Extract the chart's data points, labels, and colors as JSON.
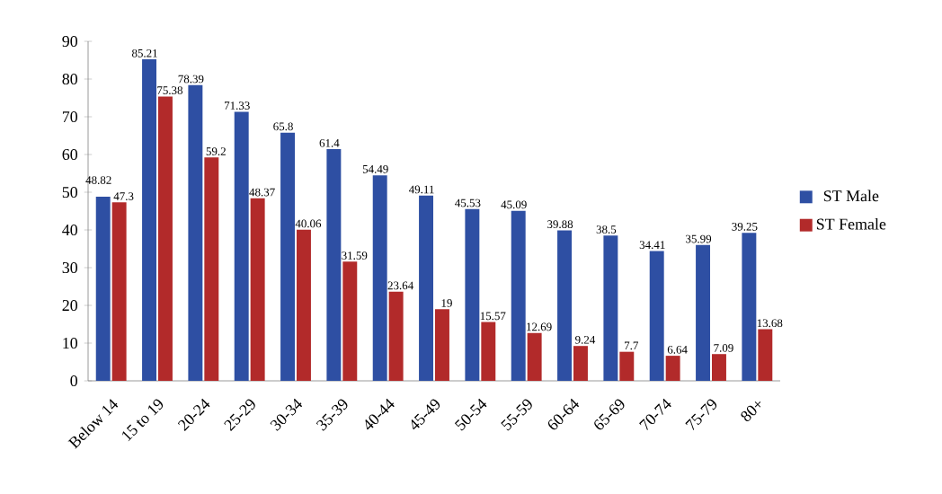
{
  "chart_data": {
    "type": "bar",
    "categories": [
      "Below 14",
      "15 to 19",
      "20-24",
      "25-29",
      "30-34",
      "35-39",
      "40-44",
      "45-49",
      "50-54",
      "55-59",
      "60-64",
      "65-69",
      "70-74",
      "75-79",
      "80+"
    ],
    "series": [
      {
        "name": "ST Male",
        "color": "#2e4fa3",
        "values": [
          48.82,
          85.21,
          78.39,
          71.33,
          65.8,
          61.4,
          54.49,
          49.11,
          45.53,
          45.09,
          39.88,
          38.5,
          34.41,
          35.99,
          39.25
        ]
      },
      {
        "name": "ST Female",
        "color": "#b22a2a",
        "values": [
          47.3,
          75.38,
          59.2,
          48.37,
          40.06,
          31.59,
          23.64,
          19,
          15.57,
          12.69,
          9.24,
          7.7,
          6.64,
          7.09,
          13.68
        ]
      }
    ],
    "ylim": [
      0,
      90
    ],
    "yticks": [
      0,
      10,
      20,
      30,
      40,
      50,
      60,
      70,
      80,
      90
    ],
    "data_labels": true,
    "grid": false,
    "legend": "right"
  }
}
